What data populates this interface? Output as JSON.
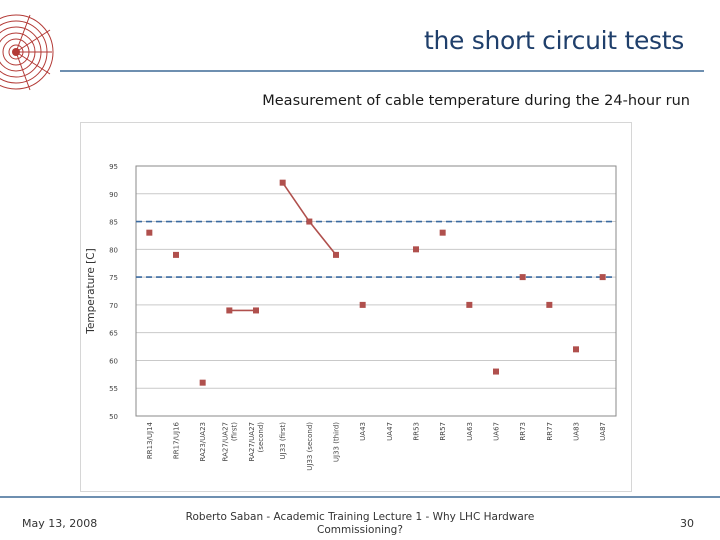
{
  "slide": {
    "title": "the short circuit tests",
    "subtitle": "Measurement of cable temperature during the 24-hour run"
  },
  "footer": {
    "date": "May 13, 2008",
    "center_line1": "Roberto Saban - Academic Training Lecture 1 - Why LHC Hardware",
    "center_line2": "Commissioning?",
    "page": "30"
  },
  "chart_data": {
    "type": "scatter",
    "ylabel": "Temperature [C]",
    "ylim": [
      50,
      95
    ],
    "yticks": [
      50,
      55,
      60,
      65,
      70,
      75,
      80,
      85,
      90,
      95
    ],
    "grid": "horizontal",
    "categories": [
      "RR13/UJ14",
      "RR17/UJ16",
      "RA23/UA23",
      "RA27/UA27 (first)",
      "RA27/UA27 (second)",
      "UJ33 (first)",
      "UJ33 (second)",
      "UJ33 (third)",
      "UA43",
      "UA47",
      "RR53",
      "RR57",
      "UA63",
      "UA67",
      "RR73",
      "RR77",
      "UA83",
      "UA87"
    ],
    "values": [
      83,
      79,
      56,
      69,
      69,
      92,
      85,
      79,
      70,
      null,
      80,
      83,
      70,
      58,
      75,
      70,
      62,
      75
    ],
    "reference_lines": [
      85,
      75
    ],
    "connected_groups": [
      [
        3,
        4
      ],
      [
        5,
        6,
        7
      ]
    ],
    "colors": {
      "marker": "#b0504d",
      "reference_line": "#3a6aa0",
      "grid": "#c9c9c9",
      "title": "#1f3f6b"
    }
  }
}
